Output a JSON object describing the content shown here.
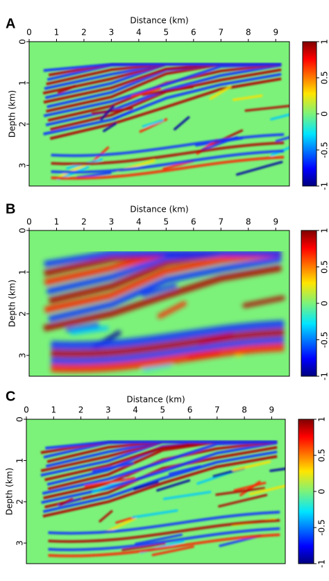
{
  "chart_data": [
    {
      "type": "heatmap",
      "panel_label": "A",
      "xlabel": "Distance (km)",
      "ylabel": "Depth (km)",
      "xlim": [
        0,
        9.5
      ],
      "xticks": [
        0,
        1,
        2,
        3,
        4,
        5,
        6,
        7,
        8,
        9
      ],
      "ylim": [
        0,
        3.5
      ],
      "yticks": [
        0,
        1,
        2,
        3
      ],
      "y_reversed": true,
      "colorbar": {
        "lim": [
          -1,
          1
        ],
        "ticks": [
          -1,
          -0.5,
          0,
          0.5,
          1
        ]
      }
    },
    {
      "type": "heatmap",
      "panel_label": "B",
      "xlabel": "Distance (km)",
      "ylabel": "Depth (km)",
      "xlim": [
        0,
        9.5
      ],
      "xticks": [
        0,
        1,
        2,
        3,
        4,
        5,
        6,
        7,
        8,
        9
      ],
      "ylim": [
        0,
        3.5
      ],
      "yticks": [
        0,
        1,
        2,
        3
      ],
      "y_reversed": true,
      "colorbar": {
        "lim": [
          -1,
          1
        ],
        "ticks": [
          -1,
          -0.5,
          0,
          0.5,
          1
        ]
      }
    },
    {
      "type": "heatmap",
      "panel_label": "C",
      "xlabel": "Distance (km)",
      "ylabel": "Depth (km)",
      "xlim": [
        0,
        9.5
      ],
      "xticks": [
        0,
        1,
        2,
        3,
        4,
        5,
        6,
        7,
        8,
        9
      ],
      "ylim": [
        0,
        3.5
      ],
      "yticks": [
        0,
        1,
        2,
        3
      ],
      "y_reversed": true,
      "colorbar": {
        "lim": [
          -1,
          1
        ],
        "ticks": [
          -1,
          -0.5,
          0,
          0.5,
          1
        ]
      }
    }
  ]
}
